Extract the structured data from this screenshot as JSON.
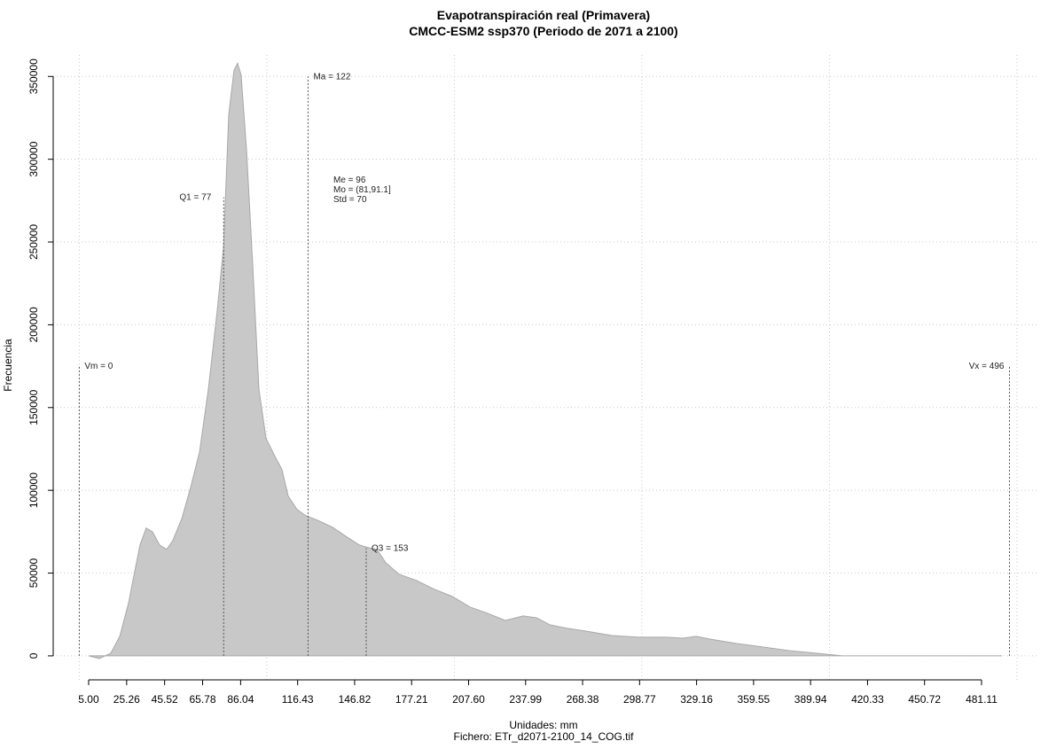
{
  "chart_data": {
    "type": "area",
    "title": "Evapotranspiración real (Primavera)",
    "subtitle": "CMCC-ESM2 ssp370 (Periodo de 2071 a 2100)",
    "x_label": "Unidades: mm",
    "y_label": "Frecuencia",
    "footnote": "Fichero: ETr_d2071-2100_14_COG.tif",
    "color": "#c8c8c8",
    "x": [
      5,
      10.7,
      16.8,
      21.6,
      26.3,
      28.6,
      32.4,
      35.7,
      39.0,
      42.8,
      46.6,
      49.9,
      54.7,
      59.4,
      64.1,
      68.8,
      73.6,
      76.9,
      79.7,
      82.5,
      84.4,
      86.3,
      89.2,
      92.5,
      95.8,
      99.6,
      104.3,
      108.1,
      111.4,
      116.1,
      120.8,
      127.9,
      135.0,
      142.1,
      149.2,
      153.9,
      158.7,
      163.4,
      170.5,
      179.9,
      189.4,
      198.9,
      208.3,
      217.8,
      227.2,
      236.7,
      243.8,
      250.9,
      260.3,
      269.8,
      284.0,
      298.1,
      312.3,
      321.8,
      328.9,
      336.0,
      350.2,
      364.3,
      378.5,
      392.7,
      406.9,
      430.5,
      492.0
    ],
    "values": [
      0,
      -1600,
      1600,
      11800,
      32000,
      45500,
      67000,
      77200,
      75000,
      67000,
      64300,
      69700,
      83000,
      101800,
      123000,
      160800,
      209000,
      246500,
      327000,
      353700,
      358000,
      351000,
      305500,
      235800,
      160800,
      131300,
      120600,
      112500,
      96500,
      88400,
      84700,
      81500,
      77700,
      72300,
      67000,
      65400,
      64300,
      56300,
      49300,
      45500,
      40200,
      35900,
      29500,
      25700,
      21400,
      24100,
      23000,
      18800,
      16600,
      15000,
      12300,
      11300,
      11300,
      10700,
      11800,
      10200,
      7500,
      5400,
      3200,
      1600,
      0,
      0,
      0
    ],
    "xlim": [
      -13.9,
      510.9
    ],
    "ylim": [
      -14500,
      363000
    ],
    "xticks": [
      {
        "value": 5,
        "label": "5.00"
      },
      25.26,
      45.52,
      65.78,
      86.04,
      116.43,
      146.82,
      177.21,
      {
        "value": 207.6,
        "label": "207.60"
      },
      237.99,
      268.38,
      298.77,
      329.16,
      359.55,
      389.94,
      420.33,
      450.72,
      481.11
    ],
    "yticks": [
      0,
      50000,
      100000,
      150000,
      200000,
      250000,
      300000,
      350000
    ],
    "grid_x": [
      0,
      100,
      200,
      300,
      400,
      500
    ],
    "grid": true,
    "annotations": [
      {
        "label": "Vm = 0",
        "x": 0,
        "y": 175000
      },
      {
        "label": "Q1 = 77",
        "x": 77,
        "y": 277000
      },
      {
        "label": "Ma = 122",
        "x": 122,
        "y": 350000
      },
      {
        "label": "Q3 = 153",
        "x": 153,
        "y": 65000
      },
      {
        "label": "Vx = 496",
        "x": 496,
        "y": 175000
      }
    ],
    "stats": [
      "Me = 96",
      "Mo = (81,91.1]",
      "Std = 70"
    ]
  }
}
